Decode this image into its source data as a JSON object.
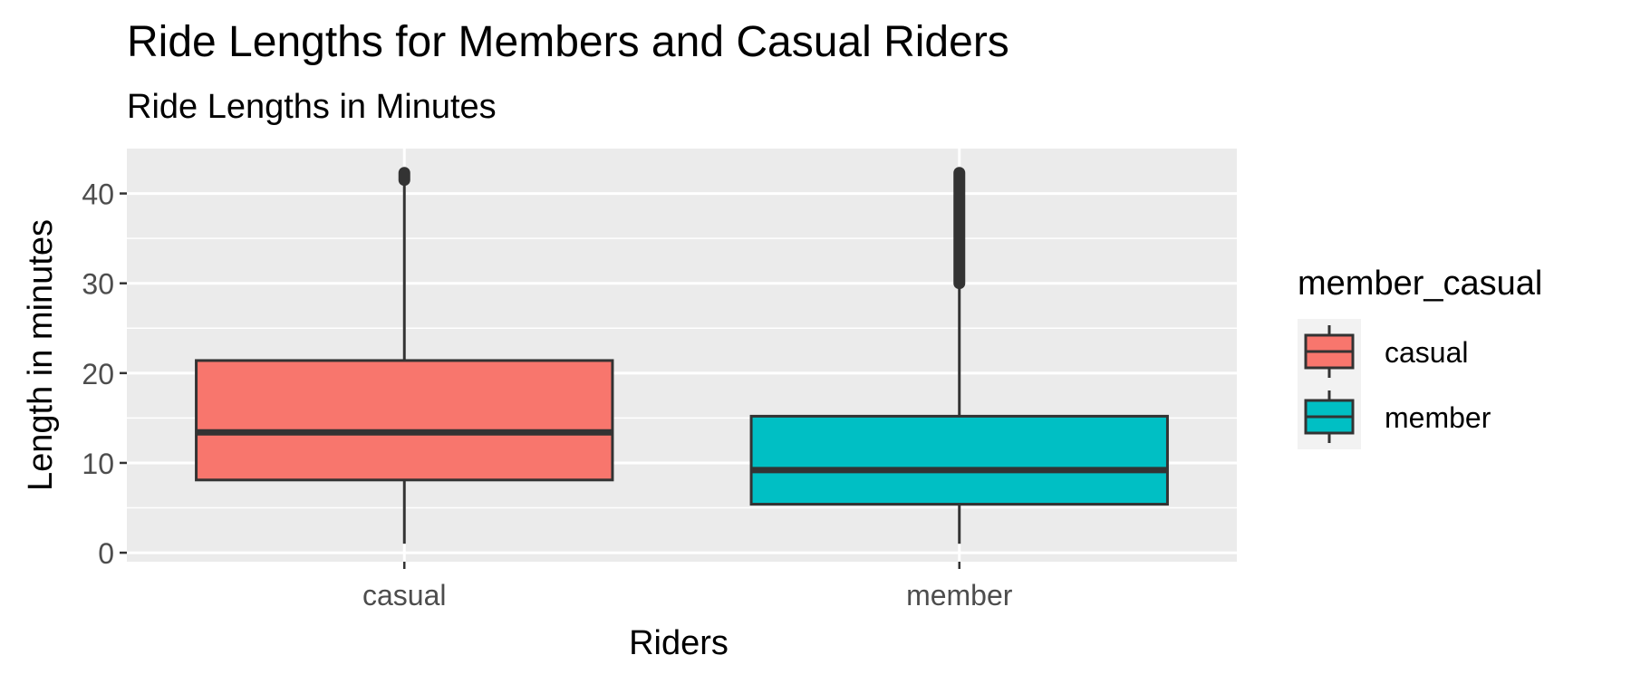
{
  "chart_data": {
    "type": "boxplot",
    "title": "Ride Lengths for Members and Casual Riders",
    "subtitle": "Ride Lengths in Minutes",
    "xlabel": "Riders",
    "ylabel": "Length in minutes",
    "categories": [
      "casual",
      "member"
    ],
    "ylim": [
      -1,
      45
    ],
    "yticks": [
      0,
      10,
      20,
      30,
      40
    ],
    "grid": true,
    "legend": {
      "title": "member_casual",
      "position": "right",
      "entries": [
        "casual",
        "member"
      ]
    },
    "colors": {
      "casual": "#F8766D",
      "member": "#00BFC4",
      "panel_background": "#EBEBEB",
      "grid": "#FFFFFF",
      "outline": "#333333"
    },
    "series": [
      {
        "name": "casual",
        "min": 1,
        "q1": 8.1,
        "median": 13.4,
        "q3": 21.4,
        "whisker_high": 41.5,
        "outliers_from": 41.5,
        "outliers_to": 42.3
      },
      {
        "name": "member",
        "min": 1,
        "q1": 5.4,
        "median": 9.2,
        "q3": 15.2,
        "whisker_high": 30,
        "outliers_from": 30,
        "outliers_to": 42.3
      }
    ]
  }
}
